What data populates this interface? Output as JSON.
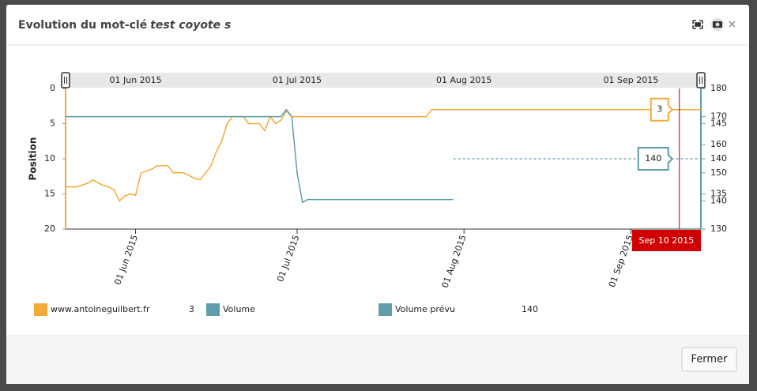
{
  "dialog": {
    "title": "Evolution du mot-clé",
    "keyword": "test coyote s",
    "close_button": "Fermer"
  },
  "chart_data": {
    "type": "line",
    "ylabel": "Position",
    "xlim": [
      "2015-05-19",
      "2015-09-14"
    ],
    "xticks": [
      {
        "value": "2015-06-01",
        "label": "01 Jun 2015"
      },
      {
        "value": "2015-07-01",
        "label": "01 Jul 2015"
      },
      {
        "value": "2015-08-01",
        "label": "01 Aug 2015"
      },
      {
        "value": "2015-09-01",
        "label": "01 Sep 2015"
      }
    ],
    "ylim": [
      0,
      20
    ],
    "y_reversed": true,
    "yticks": [
      0,
      5,
      10,
      15,
      20
    ],
    "y2lim": [
      130,
      180
    ],
    "y2ticks": [
      130,
      140,
      150,
      160,
      170,
      180
    ],
    "y3lim": [
      130,
      150
    ],
    "y3ticks": [
      135,
      140,
      145
    ],
    "series": [
      {
        "name": "www.antoineguilbert.fr",
        "color": "#f5a937",
        "axis": "y",
        "x": [
          "2015-05-19",
          "2015-05-21",
          "2015-05-23",
          "2015-05-24",
          "2015-05-26",
          "2015-05-27",
          "2015-05-28",
          "2015-05-29",
          "2015-05-30",
          "2015-05-31",
          "2015-06-01",
          "2015-06-02",
          "2015-06-04",
          "2015-06-05",
          "2015-06-07",
          "2015-06-08",
          "2015-06-10",
          "2015-06-12",
          "2015-06-13",
          "2015-06-14",
          "2015-06-15",
          "2015-06-16",
          "2015-06-17",
          "2015-06-18",
          "2015-06-19",
          "2015-06-21",
          "2015-06-22",
          "2015-06-24",
          "2015-06-25",
          "2015-06-26",
          "2015-06-27",
          "2015-06-28",
          "2015-06-29",
          "2015-06-30",
          "2015-07-25",
          "2015-07-26",
          "2015-09-14"
        ],
        "values": [
          14,
          14,
          13.5,
          13,
          13.8,
          14,
          14.4,
          16,
          15.3,
          15,
          15.2,
          12,
          11.5,
          11,
          11,
          12,
          12,
          12.8,
          13,
          12,
          11,
          9,
          7.5,
          5,
          4,
          4,
          5,
          5,
          6,
          4,
          5,
          4.5,
          3.2,
          4,
          4,
          3,
          3
        ]
      },
      {
        "name": "Volume",
        "color": "#5f9dab",
        "axis": "y3",
        "x": [
          "2015-05-19",
          "2015-06-28",
          "2015-06-29",
          "2015-06-30",
          "2015-07-01",
          "2015-07-02",
          "2015-07-03",
          "2015-07-30"
        ],
        "values": [
          146,
          146,
          147,
          146,
          138,
          133.8,
          134.2,
          134.2
        ]
      },
      {
        "name": "Volume prévu",
        "color": "#5f9dab",
        "axis": "y3",
        "dashed": true,
        "x": [
          "2015-07-30",
          "2015-09-14"
        ],
        "values": [
          140,
          140
        ]
      }
    ],
    "cursor": {
      "x": "2015-09-10",
      "label": "Sep 10 2015",
      "values": [
        3,
        null,
        140
      ]
    }
  }
}
